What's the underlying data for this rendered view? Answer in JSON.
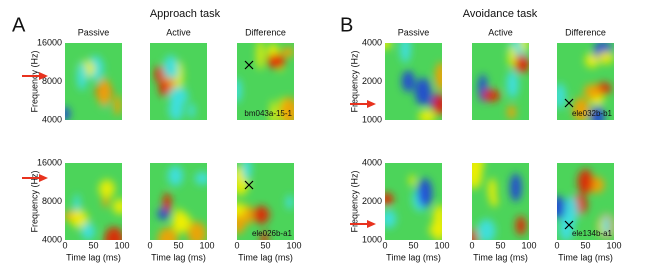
{
  "panels": [
    {
      "label": "A",
      "title": "Approach task",
      "columns": [
        "Passive",
        "Active",
        "Difference"
      ],
      "y_axis_label": "Frequency (Hz)",
      "x_axis_label": "Time lag (ms)",
      "yticks": [
        "16000",
        "8000",
        "4000"
      ],
      "xticks": [
        "0",
        "50",
        "100"
      ],
      "rows": [
        {
          "cell_id": "bm043a-15-1"
        },
        {
          "cell_id": "ele026b-a1"
        }
      ]
    },
    {
      "label": "B",
      "title": "Avoidance task",
      "columns": [
        "Passive",
        "Active",
        "Difference"
      ],
      "y_axis_label": "Frequency (Hz)",
      "x_axis_label": "Time lag (ms)",
      "yticks": [
        "4000",
        "2000",
        "1000"
      ],
      "xticks": [
        "0",
        "50",
        "100"
      ],
      "rows": [
        {
          "cell_id": "ele032b-b1"
        },
        {
          "cell_id": "ele134b-a1"
        }
      ]
    }
  ]
}
